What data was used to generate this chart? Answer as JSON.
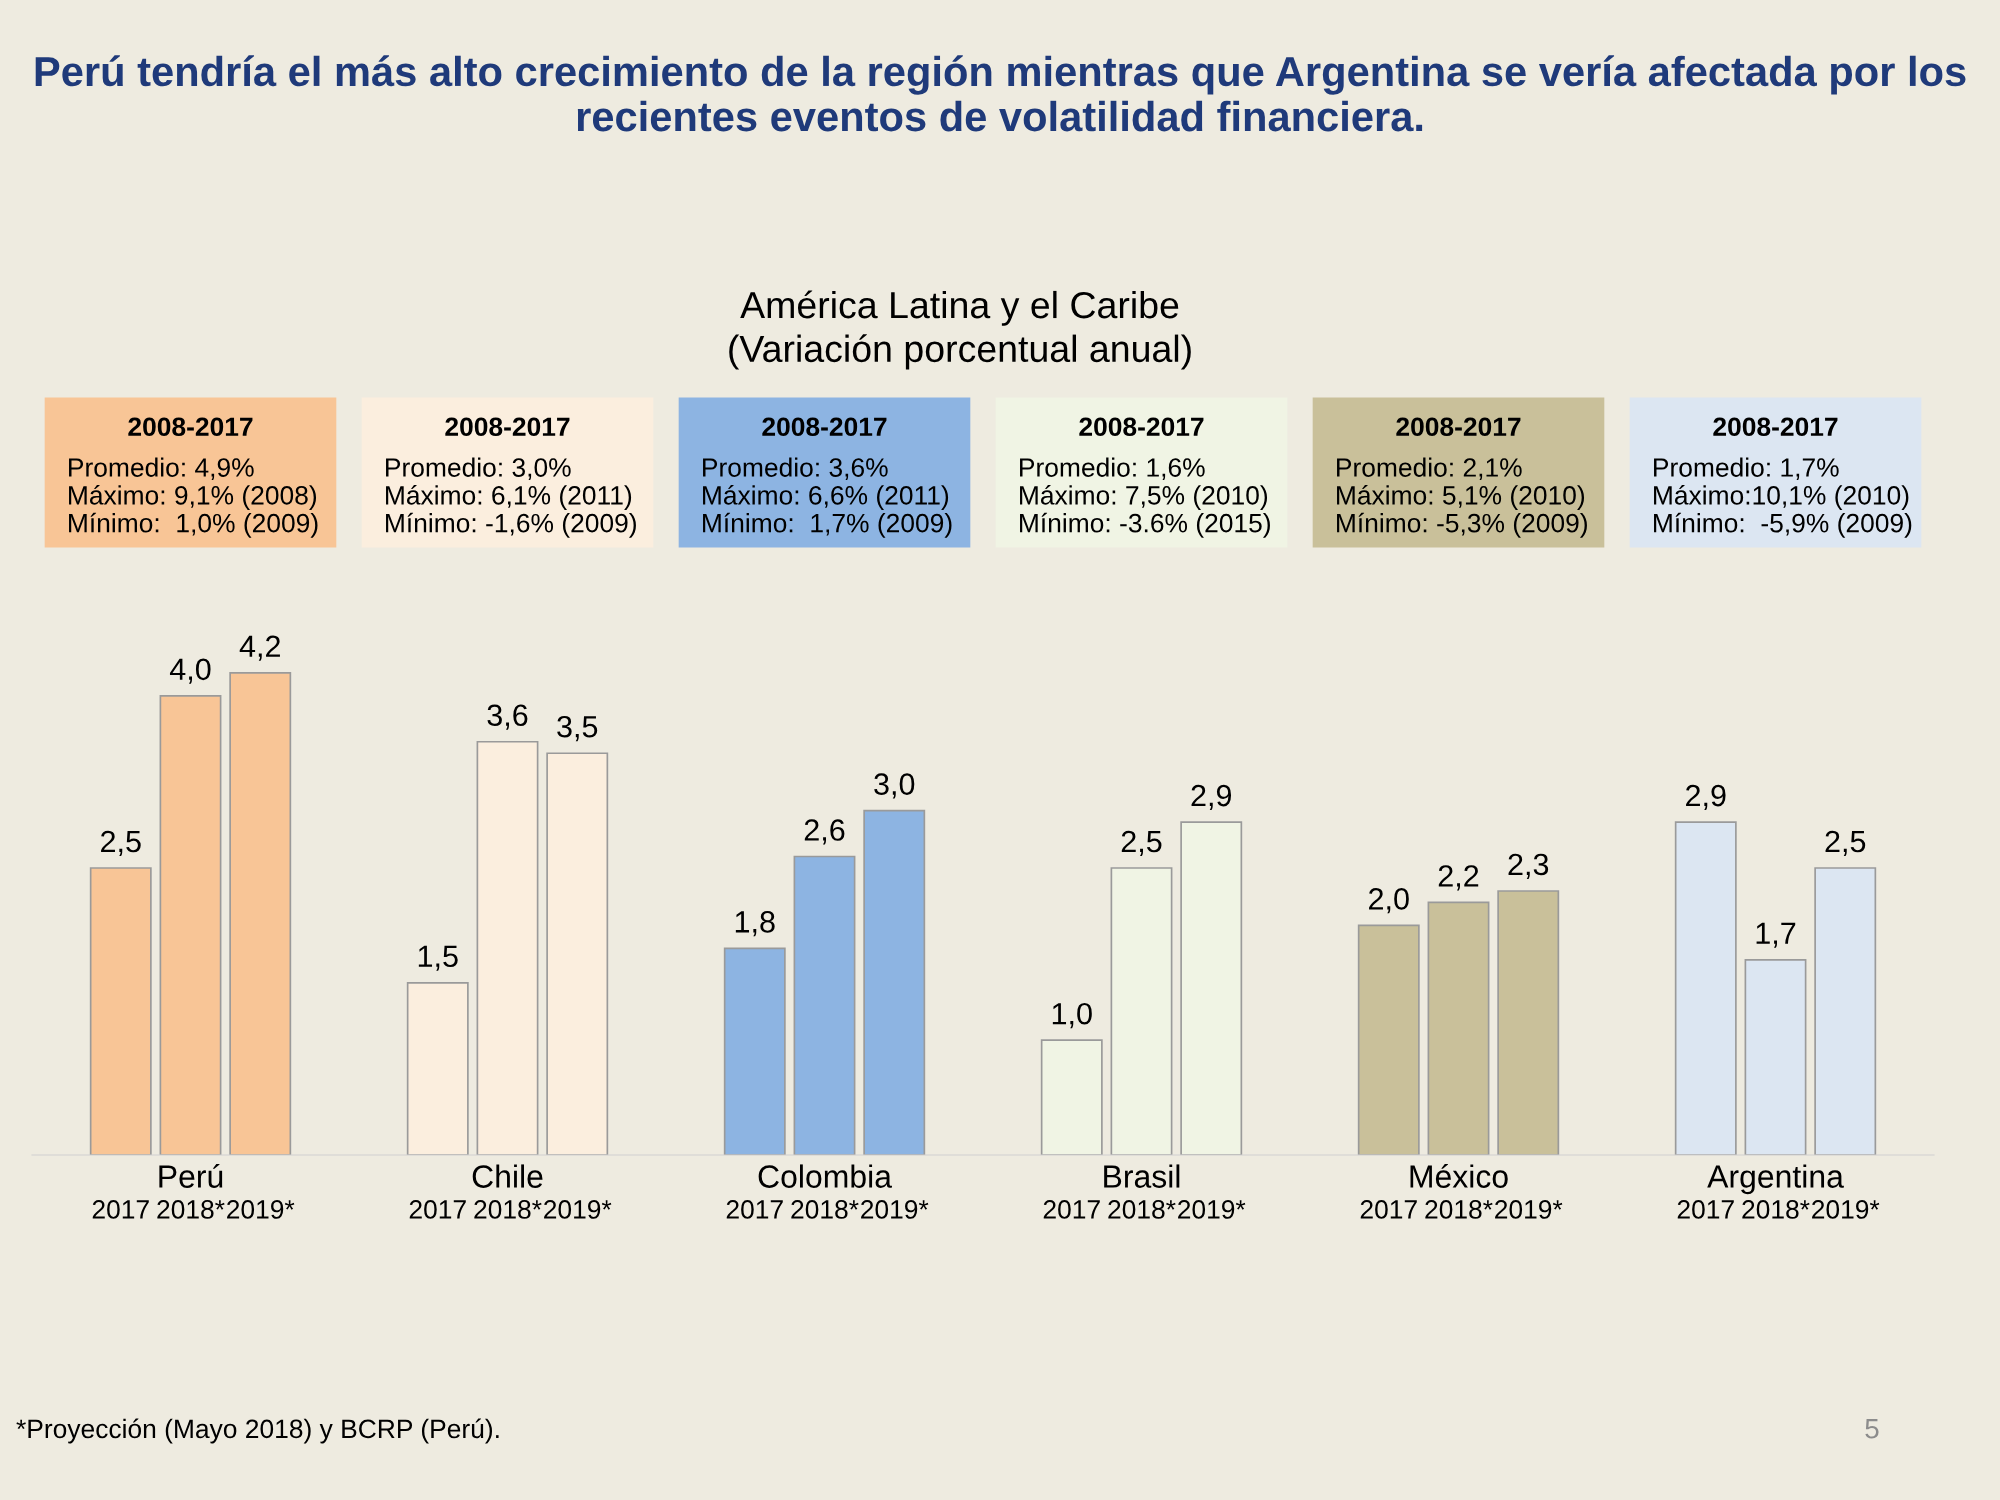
{
  "chart_data": {
    "type": "bar",
    "title": "Perú tendría el más alto crecimiento de la región mientras que Argentina se vería afectada por los recientes eventos de volatilidad financiera.",
    "subtitle": "América Latina y el Caribe\n(Variación porcentual anual)",
    "categories": [
      "Perú",
      "Chile",
      "Colombia",
      "Brasil",
      "México",
      "Argentina"
    ],
    "series": [
      {
        "name": "2017",
        "colors": [
          "#f8c596",
          "#fbeede",
          "#8db4e2",
          "#f0f4e4",
          "#c9c09a",
          "#dce6f2"
        ],
        "values": [
          2.5,
          1.5,
          1.8,
          1.0,
          2.0,
          2.9
        ],
        "value_labels": [
          "2,5",
          "1,5",
          "1,8",
          "1,0",
          "2,0",
          "2,9"
        ]
      },
      {
        "name": "2018*",
        "colors": [
          "#f8c596",
          "#fbeede",
          "#8db4e2",
          "#f0f4e4",
          "#c9c09a",
          "#dce6f2"
        ],
        "values": [
          4.0,
          3.6,
          2.6,
          2.5,
          2.2,
          1.7
        ],
        "value_labels": [
          "4,0",
          "3,6",
          "2,6",
          "2,5",
          "2,2",
          "1,7"
        ]
      },
      {
        "name": "2019*",
        "colors": [
          "#f8c596",
          "#fbeede",
          "#8db4e2",
          "#f0f4e4",
          "#c9c09a",
          "#dce6f2"
        ],
        "values": [
          4.2,
          3.5,
          3.0,
          2.9,
          2.3,
          2.5
        ],
        "value_labels": [
          "4,2",
          "3,5",
          "3,0",
          "2,9",
          "2,3",
          "2,5"
        ]
      }
    ],
    "annotations": [
      "2008-2017\nPromedio: 4,9%\nMáximo: 9,1% (2008)\nMínimo:  1,0% (2009)",
      "2008-2017\nPromedio: 3,0%\nMáximo: 6,1% (2011)\nMínimo: -1,6% (2009)",
      "2008-2017\nPromedio: 3,6%\nMáximo: 6,6% (2011)\nMínimo:  1,7% (2009)",
      "2008-2017\nPromedio: 1,6%\nMáximo: 7,5% (2010)\nMínimo: -3.6% (2015)",
      "2008-2017\nPromedio: 2,1%\nMáximo: 5,1% (2010)\nMínimo: -5,3% (2009)",
      "2008-2017\nPromedio: 1,7%\nMáximo:10,1% (2010)\nMínimo:  -5,9% (2009)",
      "*Proyección (Mayo 2018) y BCRP (Perú).",
      "5"
    ],
    "legend": false
  }
}
